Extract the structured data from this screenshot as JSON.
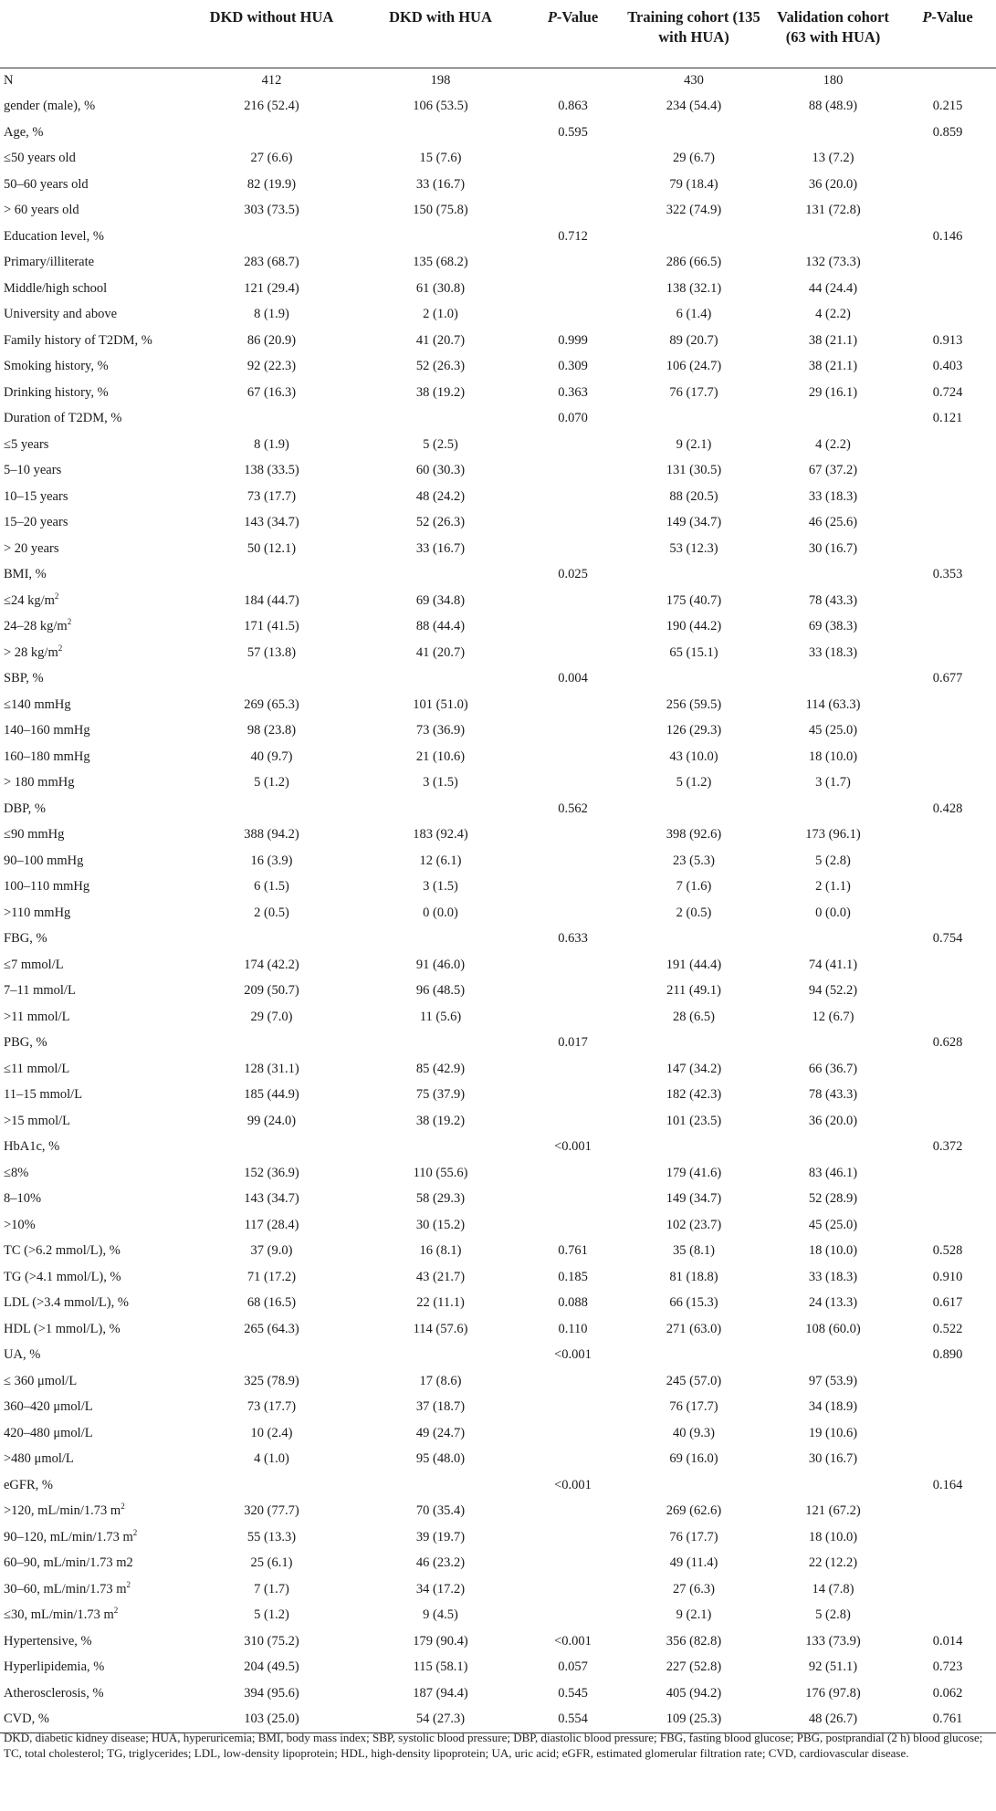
{
  "table": {
    "headers": [
      "",
      "DKD without HUA",
      "DKD with HUA",
      "P-Value",
      "Training cohort (135 with HUA)",
      "Validation cohort (63 with HUA)",
      "P-Value"
    ],
    "rows": [
      {
        "label": "N",
        "cells": [
          "412",
          "198",
          "",
          "430",
          "180",
          ""
        ]
      },
      {
        "label": "gender (male), %",
        "cells": [
          "216 (52.4)",
          "106 (53.5)",
          "0.863",
          "234 (54.4)",
          "88 (48.9)",
          "0.215"
        ]
      },
      {
        "label": "Age, %",
        "cells": [
          "",
          "",
          "0.595",
          "",
          "",
          "0.859"
        ]
      },
      {
        "label": "≤50 years old",
        "cells": [
          "27 (6.6)",
          "15 (7.6)",
          "",
          "29 (6.7)",
          "13 (7.2)",
          ""
        ]
      },
      {
        "label": "50–60 years old",
        "cells": [
          "82 (19.9)",
          "33 (16.7)",
          "",
          "79 (18.4)",
          "36 (20.0)",
          ""
        ]
      },
      {
        "label": "> 60 years old",
        "cells": [
          "303 (73.5)",
          "150 (75.8)",
          "",
          "322 (74.9)",
          "131 (72.8)",
          ""
        ]
      },
      {
        "label": "Education level, %",
        "cells": [
          "",
          "",
          "0.712",
          "",
          "",
          "0.146"
        ]
      },
      {
        "label": "Primary/illiterate",
        "cells": [
          "283 (68.7)",
          "135 (68.2)",
          "",
          "286 (66.5)",
          "132 (73.3)",
          ""
        ]
      },
      {
        "label": "Middle/high school",
        "cells": [
          "121 (29.4)",
          "61 (30.8)",
          "",
          "138 (32.1)",
          "44 (24.4)",
          ""
        ]
      },
      {
        "label": "University and above",
        "cells": [
          "8 (1.9)",
          "2 (1.0)",
          "",
          "6 (1.4)",
          "4 (2.2)",
          ""
        ]
      },
      {
        "label": "Family history of T2DM, %",
        "cells": [
          "86 (20.9)",
          "41 (20.7)",
          "0.999",
          "89 (20.7)",
          "38 (21.1)",
          "0.913"
        ]
      },
      {
        "label": "Smoking history, %",
        "cells": [
          "92 (22.3)",
          "52 (26.3)",
          "0.309",
          "106 (24.7)",
          "38 (21.1)",
          "0.403"
        ]
      },
      {
        "label": "Drinking history, %",
        "cells": [
          "67 (16.3)",
          "38 (19.2)",
          "0.363",
          "76 (17.7)",
          "29 (16.1)",
          "0.724"
        ]
      },
      {
        "label": "Duration of T2DM, %",
        "cells": [
          "",
          "",
          "0.070",
          "",
          "",
          "0.121"
        ]
      },
      {
        "label": "≤5 years",
        "cells": [
          "8 (1.9)",
          "5 (2.5)",
          "",
          "9 (2.1)",
          "4 (2.2)",
          ""
        ]
      },
      {
        "label": "5–10 years",
        "cells": [
          "138 (33.5)",
          "60 (30.3)",
          "",
          "131 (30.5)",
          "67 (37.2)",
          ""
        ]
      },
      {
        "label": "10–15 years",
        "cells": [
          "73 (17.7)",
          "48 (24.2)",
          "",
          "88 (20.5)",
          "33 (18.3)",
          ""
        ]
      },
      {
        "label": "15–20 years",
        "cells": [
          "143 (34.7)",
          "52 (26.3)",
          "",
          "149 (34.7)",
          "46 (25.6)",
          ""
        ]
      },
      {
        "label": "> 20 years",
        "cells": [
          "50 (12.1)",
          "33 (16.7)",
          "",
          "53 (12.3)",
          "30 (16.7)",
          ""
        ]
      },
      {
        "label": "BMI, %",
        "cells": [
          "",
          "",
          "0.025",
          "",
          "",
          "0.353"
        ]
      },
      {
        "label": "≤24 kg/m",
        "sup": "2",
        "cells": [
          "184 (44.7)",
          "69 (34.8)",
          "",
          "175 (40.7)",
          "78 (43.3)",
          ""
        ]
      },
      {
        "label": "24–28 kg/m",
        "sup": "2",
        "cells": [
          "171 (41.5)",
          "88 (44.4)",
          "",
          "190 (44.2)",
          "69 (38.3)",
          ""
        ]
      },
      {
        "label": "> 28 kg/m",
        "sup": "2",
        "cells": [
          "57 (13.8)",
          "41 (20.7)",
          "",
          "65 (15.1)",
          "33 (18.3)",
          ""
        ]
      },
      {
        "label": "SBP, %",
        "cells": [
          "",
          "",
          "0.004",
          "",
          "",
          "0.677"
        ]
      },
      {
        "label": "≤140 mmHg",
        "cells": [
          "269 (65.3)",
          "101 (51.0)",
          "",
          "256 (59.5)",
          "114 (63.3)",
          ""
        ]
      },
      {
        "label": "140–160 mmHg",
        "cells": [
          "98 (23.8)",
          "73 (36.9)",
          "",
          "126 (29.3)",
          "45 (25.0)",
          ""
        ]
      },
      {
        "label": "160–180 mmHg",
        "cells": [
          "40 (9.7)",
          "21 (10.6)",
          "",
          "43 (10.0)",
          "18 (10.0)",
          ""
        ]
      },
      {
        "label": "> 180 mmHg",
        "cells": [
          "5 (1.2)",
          "3 (1.5)",
          "",
          "5 (1.2)",
          "3 (1.7)",
          ""
        ]
      },
      {
        "label": "DBP, %",
        "cells": [
          "",
          "",
          "0.562",
          "",
          "",
          "0.428"
        ]
      },
      {
        "label": "≤90 mmHg",
        "cells": [
          "388 (94.2)",
          "183 (92.4)",
          "",
          "398 (92.6)",
          "173 (96.1)",
          ""
        ]
      },
      {
        "label": "90–100 mmHg",
        "cells": [
          "16 (3.9)",
          "12 (6.1)",
          "",
          "23 (5.3)",
          "5 (2.8)",
          ""
        ]
      },
      {
        "label": "100–110 mmHg",
        "cells": [
          "6 (1.5)",
          "3 (1.5)",
          "",
          "7 (1.6)",
          "2 (1.1)",
          ""
        ]
      },
      {
        "label": ">110 mmHg",
        "cells": [
          "2 (0.5)",
          "0 (0.0)",
          "",
          "2 (0.5)",
          "0 (0.0)",
          ""
        ]
      },
      {
        "label": "FBG, %",
        "cells": [
          "",
          "",
          "0.633",
          "",
          "",
          "0.754"
        ]
      },
      {
        "label": "≤7 mmol/L",
        "cells": [
          "174 (42.2)",
          "91 (46.0)",
          "",
          "191 (44.4)",
          "74 (41.1)",
          ""
        ]
      },
      {
        "label": "7–11 mmol/L",
        "cells": [
          "209 (50.7)",
          "96 (48.5)",
          "",
          "211 (49.1)",
          "94 (52.2)",
          ""
        ]
      },
      {
        "label": ">11 mmol/L",
        "cells": [
          "29 (7.0)",
          "11 (5.6)",
          "",
          "28 (6.5)",
          "12 (6.7)",
          ""
        ]
      },
      {
        "label": "PBG, %",
        "cells": [
          "",
          "",
          "0.017",
          "",
          "",
          "0.628"
        ]
      },
      {
        "label": "≤11 mmol/L",
        "cells": [
          "128 (31.1)",
          "85 (42.9)",
          "",
          "147 (34.2)",
          "66 (36.7)",
          ""
        ]
      },
      {
        "label": "11–15 mmol/L",
        "cells": [
          "185 (44.9)",
          "75 (37.9)",
          "",
          "182 (42.3)",
          "78 (43.3)",
          ""
        ]
      },
      {
        "label": ">15 mmol/L",
        "cells": [
          "99 (24.0)",
          "38 (19.2)",
          "",
          "101 (23.5)",
          "36 (20.0)",
          ""
        ]
      },
      {
        "label": "HbA1c, %",
        "cells": [
          "",
          "",
          "<0.001",
          "",
          "",
          "0.372"
        ]
      },
      {
        "label": "≤8%",
        "cells": [
          "152 (36.9)",
          "110 (55.6)",
          "",
          "179 (41.6)",
          "83 (46.1)",
          ""
        ]
      },
      {
        "label": "8–10%",
        "cells": [
          "143 (34.7)",
          "58 (29.3)",
          "",
          "149 (34.7)",
          "52 (28.9)",
          ""
        ]
      },
      {
        "label": ">10%",
        "cells": [
          "117 (28.4)",
          "30 (15.2)",
          "",
          "102 (23.7)",
          "45 (25.0)",
          ""
        ]
      },
      {
        "label": "TC (>6.2 mmol/L), %",
        "cells": [
          "37 (9.0)",
          "16 (8.1)",
          "0.761",
          "35 (8.1)",
          "18 (10.0)",
          "0.528"
        ]
      },
      {
        "label": "TG (>4.1 mmol/L), %",
        "cells": [
          "71 (17.2)",
          "43 (21.7)",
          "0.185",
          "81 (18.8)",
          "33 (18.3)",
          "0.910"
        ]
      },
      {
        "label": "LDL (>3.4 mmol/L), %",
        "cells": [
          "68 (16.5)",
          "22 (11.1)",
          "0.088",
          "66 (15.3)",
          "24 (13.3)",
          "0.617"
        ]
      },
      {
        "label": "HDL (>1 mmol/L), %",
        "cells": [
          "265 (64.3)",
          "114 (57.6)",
          "0.110",
          "271 (63.0)",
          "108 (60.0)",
          "0.522"
        ]
      },
      {
        "label": "UA, %",
        "cells": [
          "",
          "",
          "<0.001",
          "",
          "",
          "0.890"
        ]
      },
      {
        "label": "≤ 360 μmol/L",
        "cells": [
          "325 (78.9)",
          "17 (8.6)",
          "",
          "245 (57.0)",
          "97 (53.9)",
          ""
        ]
      },
      {
        "label": "360–420 μmol/L",
        "cells": [
          "73 (17.7)",
          "37 (18.7)",
          "",
          "76 (17.7)",
          "34 (18.9)",
          ""
        ]
      },
      {
        "label": "420–480 μmol/L",
        "cells": [
          "10 (2.4)",
          "49 (24.7)",
          "",
          "40 (9.3)",
          "19 (10.6)",
          ""
        ]
      },
      {
        "label": ">480 μmol/L",
        "cells": [
          "4 (1.0)",
          "95 (48.0)",
          "",
          "69 (16.0)",
          "30 (16.7)",
          ""
        ]
      },
      {
        "label": "eGFR, %",
        "cells": [
          "",
          "",
          "<0.001",
          "",
          "",
          "0.164"
        ]
      },
      {
        "label": ">120, mL/min/1.73 m",
        "sup": "2",
        "cells": [
          "320 (77.7)",
          "70 (35.4)",
          "",
          "269 (62.6)",
          "121 (67.2)",
          ""
        ]
      },
      {
        "label": "90–120, mL/min/1.73 m",
        "sup": "2",
        "cells": [
          "55 (13.3)",
          "39 (19.7)",
          "",
          "76 (17.7)",
          "18 (10.0)",
          ""
        ]
      },
      {
        "label": "60–90, mL/min/1.73 m2",
        "cells": [
          "25 (6.1)",
          "46 (23.2)",
          "",
          "49 (11.4)",
          "22 (12.2)",
          ""
        ]
      },
      {
        "label": "30–60, mL/min/1.73 m",
        "sup": "2",
        "cells": [
          "7 (1.7)",
          "34 (17.2)",
          "",
          "27 (6.3)",
          "14 (7.8)",
          ""
        ]
      },
      {
        "label": "≤30, mL/min/1.73 m",
        "sup": "2",
        "cells": [
          "5 (1.2)",
          "9 (4.5)",
          "",
          "9 (2.1)",
          "5 (2.8)",
          ""
        ]
      },
      {
        "label": "Hypertensive, %",
        "cells": [
          "310 (75.2)",
          "179 (90.4)",
          "<0.001",
          "356 (82.8)",
          "133 (73.9)",
          "0.014"
        ]
      },
      {
        "label": "Hyperlipidemia, %",
        "cells": [
          "204 (49.5)",
          "115 (58.1)",
          "0.057",
          "227 (52.8)",
          "92 (51.1)",
          "0.723"
        ]
      },
      {
        "label": "Atherosclerosis, %",
        "cells": [
          "394 (95.6)",
          "187 (94.4)",
          "0.545",
          "405 (94.2)",
          "176 (97.8)",
          "0.062"
        ]
      },
      {
        "label": "CVD, %",
        "cells": [
          "103 (25.0)",
          "54 (27.3)",
          "0.554",
          "109 (25.3)",
          "48 (26.7)",
          "0.761"
        ]
      }
    ],
    "footnote": "DKD, diabetic kidney disease; HUA, hyperuricemia; BMI, body mass index; SBP, systolic blood pressure; DBP, diastolic blood pressure; FBG, fasting blood glucose; PBG, postprandial (2 h) blood glucose; TC, total cholesterol; TG, triglycerides; LDL, low-density lipoprotein; HDL, high-density lipoprotein; UA, uric acid; eGFR, estimated glomerular filtration rate; CVD, cardiovascular disease."
  }
}
